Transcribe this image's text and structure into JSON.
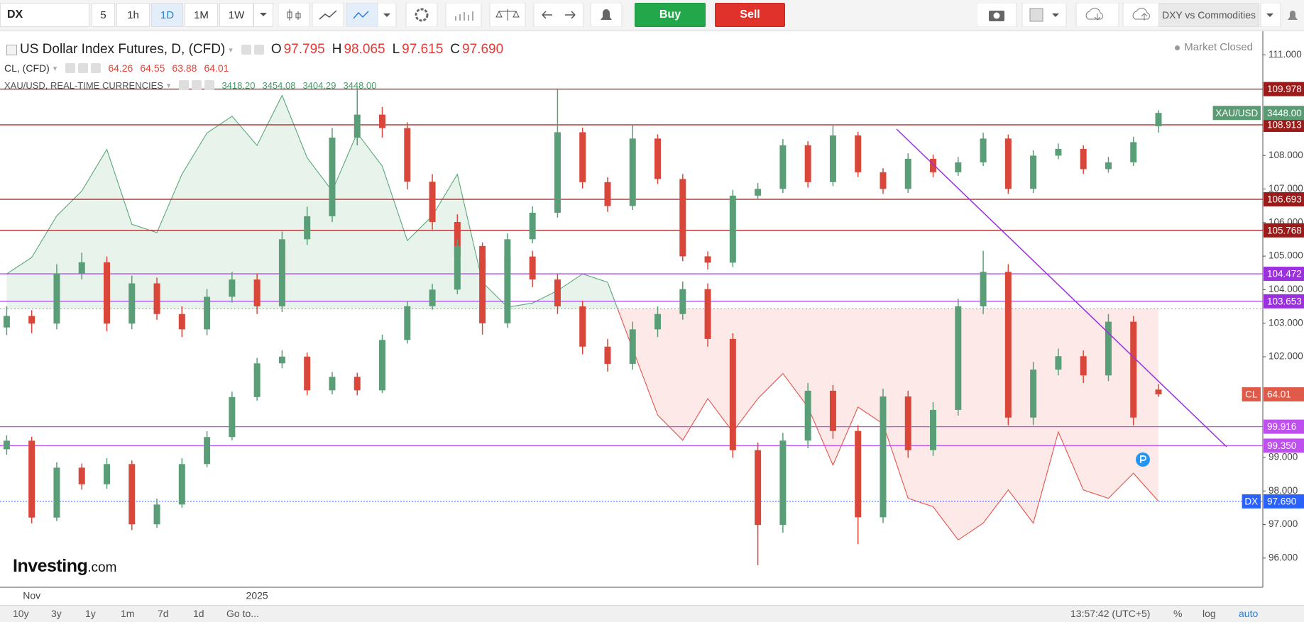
{
  "toolbar": {
    "symbol": "DX",
    "intervals": [
      "5",
      "1h",
      "1D",
      "1M",
      "1W"
    ],
    "active_interval": "1D",
    "buy": "Buy",
    "sell": "Sell",
    "layout_name": "DXY vs Commodities"
  },
  "legend": [
    {
      "name": "US Dollar Index Futures, D, (CFD)",
      "value_color": "#e53935",
      "fields": [
        {
          "label": "O",
          "value": "97.795"
        },
        {
          "label": "H",
          "value": "98.065"
        },
        {
          "label": "L",
          "value": "97.615"
        },
        {
          "label": "C",
          "value": "97.690"
        }
      ]
    },
    {
      "name": "CL, (CFD)",
      "value_color": "#e0443a",
      "fields": [
        {
          "value": "64.26"
        },
        {
          "value": "64.55"
        },
        {
          "value": "63.88"
        },
        {
          "value": "64.01"
        }
      ]
    },
    {
      "name": "XAU/USD, REAL-TIME CURRENCIES",
      "value_color": "#4f9a6c",
      "fields": [
        {
          "value": "3418.20"
        },
        {
          "value": "3454.08"
        },
        {
          "value": "3404.29"
        },
        {
          "value": "3448.00"
        }
      ]
    }
  ],
  "market_status": "Market Closed",
  "brand": "Investing",
  "brand_suffix": ".com",
  "chart_data": {
    "type": "candlestick",
    "categories": [
      null,
      "Nov",
      null,
      null,
      null,
      null,
      null,
      null,
      null,
      null,
      "2025",
      null,
      null,
      null,
      null,
      null,
      null,
      null,
      null,
      null,
      null,
      null,
      null,
      null,
      null,
      null,
      null,
      null,
      null,
      null,
      null,
      null,
      null,
      null,
      null,
      null,
      null,
      null,
      null,
      null,
      null,
      null,
      null,
      null,
      null,
      null,
      null
    ],
    "ylim": [
      95.13,
      111.64
    ],
    "yticks": [
      {
        "value": 96,
        "label": "96.000"
      },
      {
        "value": 97,
        "label": "97.000"
      },
      {
        "value": 98,
        "label": "98.000"
      },
      {
        "value": 99,
        "label": "99.000"
      },
      {
        "value": 102,
        "label": "102.000"
      },
      {
        "value": 103,
        "label": "103.000"
      },
      {
        "value": 104,
        "label": "104.000"
      },
      {
        "value": 105,
        "label": "105.000"
      },
      {
        "value": 106,
        "label": "106.000"
      },
      {
        "value": 107,
        "label": "107.000"
      },
      {
        "value": 108,
        "label": "108.000"
      },
      {
        "value": 111,
        "label": "111.000"
      }
    ],
    "up_color": "#5a9e78",
    "down_color": "#d9463a",
    "levels": [
      {
        "value": 109.978,
        "color": "#9b1b1b"
      },
      {
        "value": 108.913,
        "color": "#9b1b1b"
      },
      {
        "value": 106.693,
        "color": "#9b1b1b"
      },
      {
        "value": 105.768,
        "color": "#9b1b1b"
      },
      {
        "value": 104.472,
        "color": "#9c2fe0"
      },
      {
        "value": 103.653,
        "color": "#9c2fe0"
      },
      {
        "value": 99.916,
        "color": "#c04ff0"
      },
      {
        "value": 99.35,
        "label": "99.350",
        "color": "#c04ff0"
      }
    ],
    "series": [
      {
        "name": "DX",
        "style": "baseline",
        "baseline": 103.43,
        "color_above": "#5aa877",
        "color_below": "#e5534b",
        "badge_color": "#2962ff",
        "values": [
          104.47,
          104.96,
          106.2,
          106.94,
          108.18,
          105.95,
          105.7,
          107.44,
          108.67,
          109.17,
          108.3,
          109.79,
          107.93,
          106.94,
          108.67,
          107.68,
          105.46,
          106.2,
          107.44,
          104.22,
          103.48,
          103.6,
          103.97,
          104.47,
          104.22,
          102.24,
          100.26,
          99.51,
          100.75,
          99.76,
          100.75,
          101.5,
          100.5,
          98.77,
          100.5,
          100,
          97.78,
          97.53,
          96.54,
          97.04,
          98.03,
          97.04,
          99.76,
          98.03,
          97.78,
          98.53,
          97.69
        ],
        "last": {
          "value": 97.69,
          "label": "97.690"
        }
      },
      {
        "name": "CL",
        "style": "candles",
        "ylim": [
          53.95,
          82.84
        ],
        "badge_color": "#e05a4a",
        "last": 64.01,
        "ohlc": [
          [
            67.5,
            68.6,
            67.1,
            68.1
          ],
          [
            68.1,
            68.4,
            67.2,
            67.7
          ],
          [
            67.7,
            70.8,
            67.4,
            70.3
          ],
          [
            70.3,
            71.4,
            70.0,
            70.9
          ],
          [
            70.9,
            71.2,
            67.3,
            67.7
          ],
          [
            67.7,
            70.2,
            67.4,
            69.8
          ],
          [
            69.8,
            70.1,
            67.9,
            68.2
          ],
          [
            68.2,
            68.6,
            67.0,
            67.4
          ],
          [
            67.4,
            69.5,
            67.1,
            69.1
          ],
          [
            69.1,
            70.4,
            68.8,
            70.0
          ],
          [
            70.0,
            70.3,
            68.2,
            68.6
          ],
          [
            68.6,
            72.5,
            68.3,
            72.1
          ],
          [
            72.1,
            73.8,
            71.8,
            73.3
          ],
          [
            73.3,
            77.9,
            73.0,
            77.4
          ],
          [
            77.4,
            80.0,
            77.0,
            78.6
          ],
          [
            78.6,
            79.0,
            77.4,
            77.9
          ],
          [
            77.9,
            78.2,
            74.7,
            75.1
          ],
          [
            75.1,
            75.5,
            72.6,
            73.0
          ],
          [
            73.0,
            73.4,
            70.8,
            71.2
          ],
          [
            71.2,
            71.6,
            70.1,
            70.5
          ],
          [
            70.5,
            71.6,
            70.2,
            71.2
          ],
          [
            71.2,
            71.5,
            69.6,
            70.0
          ],
          [
            70.0,
            70.3,
            68.2,
            68.6
          ],
          [
            68.6,
            68.9,
            66.1,
            66.5
          ],
          [
            66.5,
            66.9,
            65.2,
            65.6
          ],
          [
            65.6,
            67.8,
            65.3,
            67.4
          ],
          [
            67.4,
            68.6,
            67.0,
            68.2
          ],
          [
            68.2,
            69.9,
            67.9,
            69.5
          ],
          [
            69.5,
            69.8,
            66.5,
            66.9
          ],
          [
            66.9,
            67.2,
            60.7,
            61.1
          ],
          [
            61.1,
            61.5,
            55.1,
            57.2
          ],
          [
            57.2,
            62.0,
            56.8,
            61.6
          ],
          [
            61.6,
            64.6,
            61.2,
            64.2
          ],
          [
            64.2,
            64.5,
            61.7,
            62.1
          ],
          [
            62.1,
            62.4,
            56.2,
            57.6
          ],
          [
            57.6,
            64.3,
            57.3,
            63.9
          ],
          [
            63.9,
            64.2,
            60.7,
            61.1
          ],
          [
            61.1,
            63.6,
            60.8,
            63.2
          ],
          [
            63.2,
            69.0,
            62.9,
            68.6
          ],
          [
            68.6,
            71.5,
            68.2,
            70.4
          ],
          [
            70.4,
            70.8,
            62.4,
            62.8
          ],
          [
            62.8,
            65.7,
            62.4,
            65.3
          ],
          [
            65.3,
            66.4,
            65.0,
            66.0
          ],
          [
            66.0,
            66.3,
            64.6,
            65.0
          ],
          [
            65.0,
            68.2,
            64.7,
            67.8
          ],
          [
            67.8,
            68.1,
            62.4,
            62.8
          ],
          [
            64.26,
            64.55,
            63.88,
            64.01
          ]
        ]
      },
      {
        "name": "XAU/USD",
        "style": "candles",
        "ylim": [
          2393,
          3625
        ],
        "badge_color": "#5b9b74",
        "last": {
          "value": 3448,
          "label": "3448.00"
        },
        "ohlc": [
          [
            2700,
            2731,
            2688,
            2719
          ],
          [
            2719,
            2728,
            2535,
            2548
          ],
          [
            2548,
            2671,
            2540,
            2659
          ],
          [
            2659,
            2668,
            2610,
            2622
          ],
          [
            2622,
            2680,
            2612,
            2667
          ],
          [
            2667,
            2675,
            2520,
            2533
          ],
          [
            2533,
            2590,
            2525,
            2577
          ],
          [
            2577,
            2680,
            2570,
            2667
          ],
          [
            2667,
            2740,
            2660,
            2727
          ],
          [
            2727,
            2828,
            2720,
            2816
          ],
          [
            2816,
            2903,
            2808,
            2891
          ],
          [
            2891,
            2920,
            2880,
            2906
          ],
          [
            2906,
            2915,
            2820,
            2831
          ],
          [
            2831,
            2872,
            2822,
            2861
          ],
          [
            2861,
            2870,
            2820,
            2831
          ],
          [
            2831,
            2955,
            2825,
            2943
          ],
          [
            2943,
            3030,
            2935,
            3018
          ],
          [
            3018,
            3068,
            3010,
            3055
          ],
          [
            3055,
            3167,
            3045,
            3152
          ],
          [
            3152,
            3160,
            2955,
            2980
          ],
          [
            2980,
            3180,
            2970,
            3167
          ],
          [
            3167,
            3240,
            3158,
            3226
          ],
          [
            3226,
            3500,
            3215,
            3405
          ],
          [
            3405,
            3415,
            3280,
            3294
          ],
          [
            3294,
            3305,
            3228,
            3241
          ],
          [
            3241,
            3420,
            3232,
            3391
          ],
          [
            3391,
            3400,
            3290,
            3301
          ],
          [
            3301,
            3312,
            3118,
            3129
          ],
          [
            3129,
            3140,
            3100,
            3115
          ],
          [
            3115,
            3277,
            3105,
            3264
          ],
          [
            3264,
            3292,
            3255,
            3279
          ],
          [
            3279,
            3390,
            3270,
            3376
          ],
          [
            3376,
            3385,
            3282,
            3294
          ],
          [
            3294,
            3420,
            3285,
            3398
          ],
          [
            3398,
            3406,
            3305,
            3316
          ],
          [
            3316,
            3325,
            3268,
            3279
          ],
          [
            3279,
            3358,
            3270,
            3346
          ],
          [
            3346,
            3355,
            3305,
            3316
          ],
          [
            3316,
            3350,
            3308,
            3338
          ],
          [
            3338,
            3404,
            3330,
            3391
          ],
          [
            3391,
            3400,
            3268,
            3279
          ],
          [
            3279,
            3365,
            3270,
            3353
          ],
          [
            3353,
            3380,
            3345,
            3368
          ],
          [
            3368,
            3376,
            3312,
            3323
          ],
          [
            3323,
            3350,
            3315,
            3338
          ],
          [
            3338,
            3395,
            3330,
            3383
          ],
          [
            3418.2,
            3454.08,
            3404.29,
            3448
          ]
        ]
      }
    ]
  },
  "bottom_bar": {
    "ranges": [
      "10y",
      "3y",
      "1y",
      "1m",
      "7d",
      "1d"
    ],
    "goto": "Go to...",
    "clock": "13:57:42 (UTC+5)",
    "options": [
      "%",
      "log",
      "auto"
    ]
  }
}
